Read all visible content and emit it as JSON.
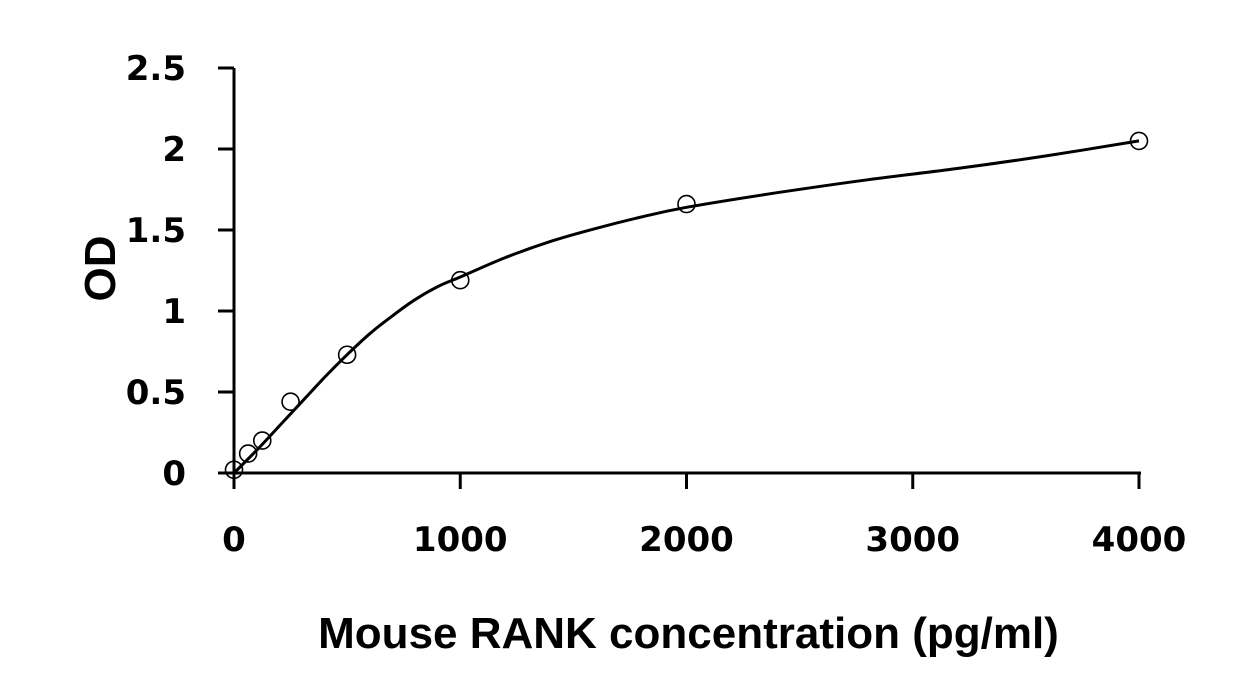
{
  "chart_data": {
    "type": "scatter",
    "title": "",
    "xlabel": "Mouse RANK concentration (pg/ml)",
    "ylabel": "OD",
    "xlim": [
      0,
      4000
    ],
    "ylim": [
      0,
      2.5
    ],
    "x_ticks": [
      0,
      1000,
      2000,
      3000,
      4000
    ],
    "x_tick_labels": [
      "0",
      "1000",
      "2000",
      "3000",
      "4000"
    ],
    "y_ticks": [
      0,
      0.5,
      1,
      1.5,
      2,
      2.5
    ],
    "y_tick_labels": [
      "0",
      "0.5",
      "1",
      "1.5",
      "2",
      "2.5"
    ],
    "grid": false,
    "legend": "none",
    "marker": "open-circle",
    "series": [
      {
        "x": [
          0,
          62.5,
          125,
          250,
          500,
          1000,
          2000,
          4000
        ],
        "y": [
          0.02,
          0.12,
          0.2,
          0.44,
          0.73,
          1.19,
          1.66,
          2.05
        ]
      }
    ],
    "fit_curve": {
      "x": [
        0,
        100,
        200,
        300,
        400,
        500,
        600,
        700,
        800,
        900,
        1000,
        1200,
        1400,
        1600,
        1800,
        2000,
        2400,
        2800,
        3200,
        3600,
        4000
      ],
      "y": [
        0.0,
        0.14,
        0.29,
        0.44,
        0.59,
        0.73,
        0.86,
        0.97,
        1.07,
        1.15,
        1.21,
        1.33,
        1.43,
        1.51,
        1.58,
        1.64,
        1.73,
        1.81,
        1.88,
        1.96,
        2.05
      ]
    },
    "colors": {
      "axis": "#000000",
      "marker_stroke": "#000000",
      "curve": "#000000"
    }
  }
}
